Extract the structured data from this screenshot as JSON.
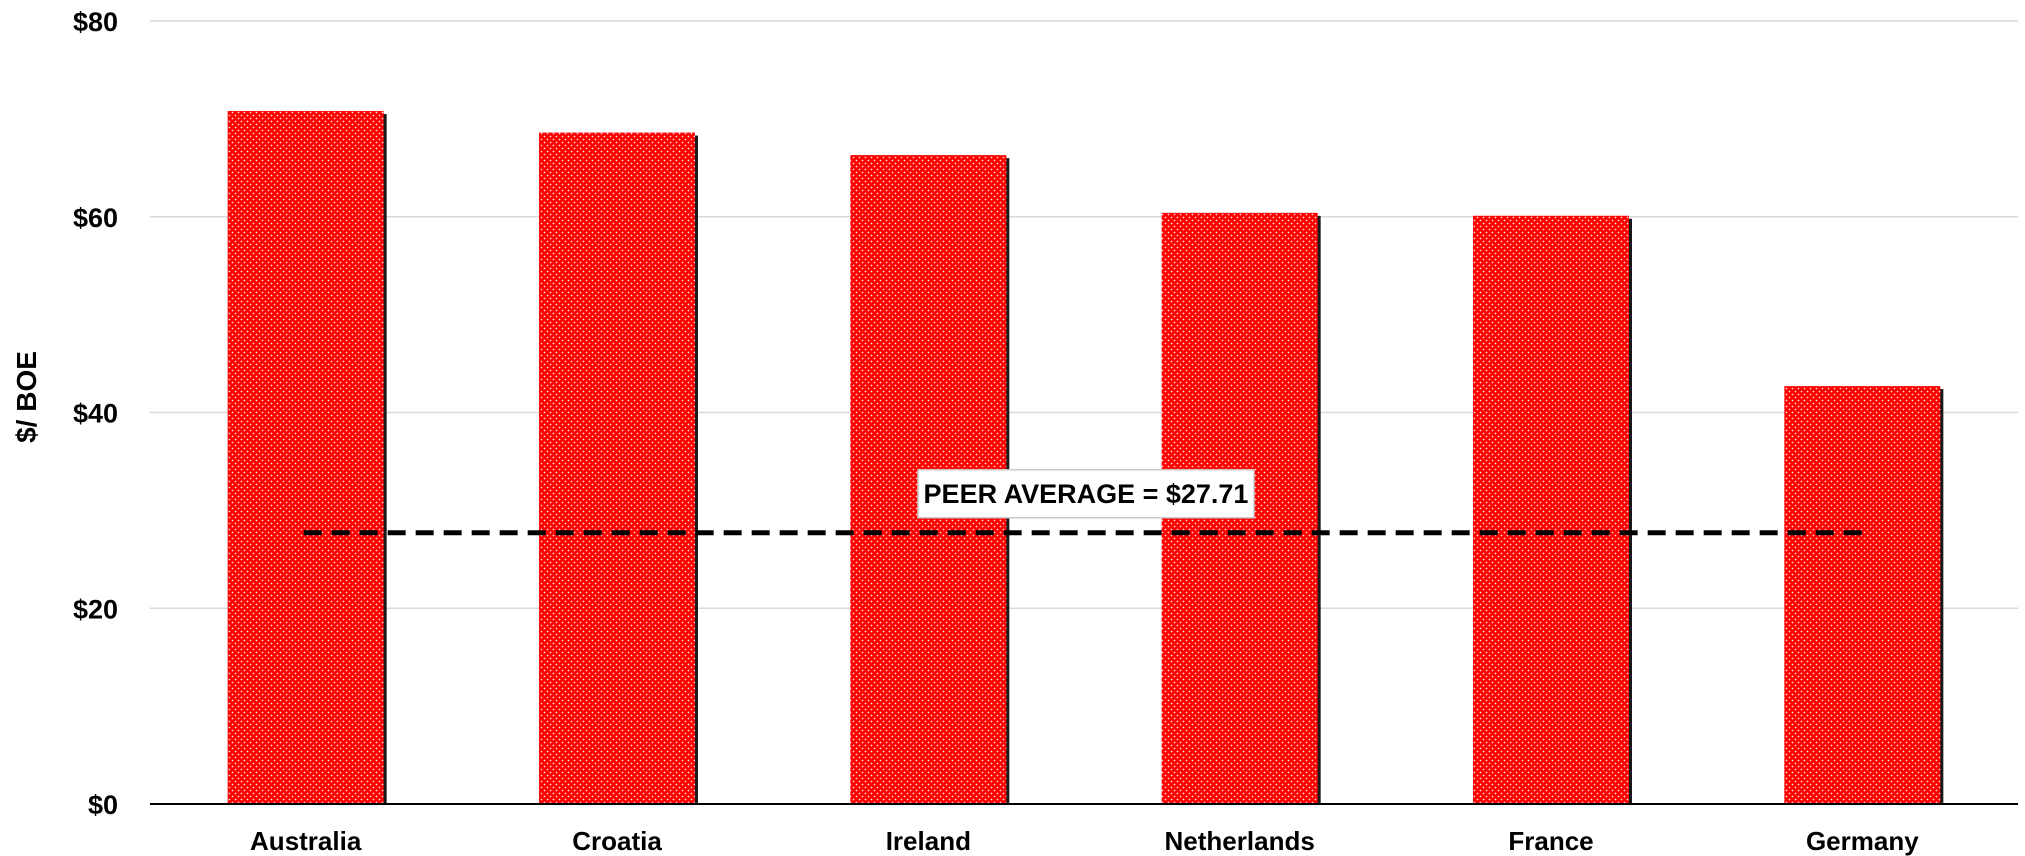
{
  "chart_data": {
    "type": "bar",
    "categories": [
      "Australia",
      "Croatia",
      "Ireland",
      "Netherlands",
      "France",
      "Germany"
    ],
    "values": [
      70.8,
      68.6,
      66.3,
      60.4,
      60.1,
      42.7
    ],
    "ylabel": "$/ BOE",
    "xlabel": "",
    "ylim": [
      0,
      80
    ],
    "yticks": [
      0,
      20,
      40,
      60,
      80
    ],
    "ytick_labels": [
      "$0",
      "$20",
      "$40",
      "$60",
      "$80"
    ],
    "grid": true,
    "bar_color": "#ff0000",
    "reference_line": {
      "value": 27.71,
      "style": "dashed",
      "color": "#000000"
    },
    "annotation": "PEER AVERAGE = $27.71"
  }
}
